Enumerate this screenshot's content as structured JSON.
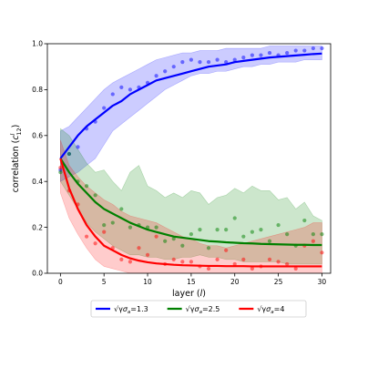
{
  "chart_data": {
    "type": "line",
    "xlabel": "layer (l)",
    "ylabel": "correlation (c12 l)",
    "xlim": [
      -1.5,
      31
    ],
    "ylim": [
      0,
      1
    ],
    "x_ticks": [
      0,
      5,
      10,
      15,
      20,
      25,
      30
    ],
    "y_ticks": [
      0.0,
      0.2,
      0.4,
      0.6,
      0.8,
      1.0
    ],
    "x_tick_labels": [
      "0",
      "5",
      "10",
      "15",
      "20",
      "25",
      "30"
    ],
    "y_tick_labels": [
      "0.0",
      "0.2",
      "0.4",
      "0.6",
      "0.8",
      "1.0"
    ],
    "grid": false,
    "legend_position": "below",
    "series": [
      {
        "name": "√γσa=1.3",
        "legend_label": "=1.3",
        "color": "#0000ff",
        "fit": [
          0.5,
          0.55,
          0.6,
          0.64,
          0.67,
          0.7,
          0.73,
          0.75,
          0.78,
          0.8,
          0.82,
          0.84,
          0.85,
          0.86,
          0.87,
          0.88,
          0.89,
          0.9,
          0.905,
          0.91,
          0.92,
          0.925,
          0.93,
          0.935,
          0.94,
          0.943,
          0.946,
          0.949,
          0.952,
          0.955,
          0.957
        ],
        "points": [
          0.45,
          0.52,
          0.55,
          0.63,
          0.66,
          0.72,
          0.78,
          0.81,
          0.8,
          0.81,
          0.83,
          0.86,
          0.88,
          0.9,
          0.92,
          0.93,
          0.92,
          0.92,
          0.93,
          0.92,
          0.93,
          0.94,
          0.95,
          0.95,
          0.96,
          0.95,
          0.96,
          0.97,
          0.97,
          0.98,
          0.98
        ],
        "band_upper": [
          0.62,
          0.64,
          0.68,
          0.72,
          0.76,
          0.8,
          0.83,
          0.85,
          0.87,
          0.89,
          0.91,
          0.93,
          0.94,
          0.95,
          0.96,
          0.96,
          0.97,
          0.97,
          0.97,
          0.98,
          0.98,
          0.98,
          0.98,
          0.98,
          0.99,
          0.99,
          0.99,
          0.99,
          0.99,
          0.99,
          0.99
        ],
        "band_lower": [
          0.4,
          0.42,
          0.44,
          0.47,
          0.5,
          0.56,
          0.62,
          0.65,
          0.68,
          0.71,
          0.74,
          0.77,
          0.8,
          0.82,
          0.84,
          0.86,
          0.87,
          0.87,
          0.88,
          0.88,
          0.89,
          0.9,
          0.9,
          0.91,
          0.91,
          0.92,
          0.92,
          0.92,
          0.93,
          0.93,
          0.93
        ]
      },
      {
        "name": "√γσa=2.5",
        "legend_label": "=2.5",
        "color": "#008000",
        "fit": [
          0.5,
          0.44,
          0.39,
          0.35,
          0.31,
          0.28,
          0.26,
          0.24,
          0.22,
          0.205,
          0.19,
          0.18,
          0.17,
          0.16,
          0.155,
          0.15,
          0.145,
          0.14,
          0.138,
          0.135,
          0.133,
          0.131,
          0.13,
          0.128,
          0.127,
          0.126,
          0.125,
          0.124,
          0.124,
          0.123,
          0.123
        ],
        "points": [
          0.44,
          0.52,
          0.4,
          0.38,
          0.34,
          0.21,
          0.22,
          0.28,
          0.2,
          0.21,
          0.2,
          0.2,
          0.14,
          0.15,
          0.12,
          0.17,
          0.19,
          0.11,
          0.19,
          0.19,
          0.24,
          0.16,
          0.18,
          0.19,
          0.14,
          0.21,
          0.17,
          0.12,
          0.23,
          0.17,
          0.17
        ],
        "band_upper": [
          0.63,
          0.6,
          0.54,
          0.48,
          0.44,
          0.45,
          0.4,
          0.36,
          0.44,
          0.47,
          0.38,
          0.36,
          0.33,
          0.35,
          0.33,
          0.36,
          0.35,
          0.3,
          0.33,
          0.34,
          0.37,
          0.35,
          0.38,
          0.36,
          0.36,
          0.32,
          0.33,
          0.28,
          0.31,
          0.25,
          0.23
        ],
        "band_lower": [
          0.4,
          0.34,
          0.28,
          0.22,
          0.18,
          0.15,
          0.12,
          0.1,
          0.08,
          0.08,
          0.07,
          0.07,
          0.06,
          0.06,
          0.07,
          0.07,
          0.08,
          0.07,
          0.07,
          0.06,
          0.06,
          0.05,
          0.05,
          0.05,
          0.05,
          0.05,
          0.04,
          0.04,
          0.04,
          0.04,
          0.04
        ]
      },
      {
        "name": "√γσa=4",
        "legend_label": "=4",
        "color": "#ff0000",
        "fit": [
          0.5,
          0.37,
          0.28,
          0.21,
          0.16,
          0.12,
          0.1,
          0.08,
          0.065,
          0.055,
          0.048,
          0.043,
          0.04,
          0.037,
          0.035,
          0.034,
          0.033,
          0.032,
          0.032,
          0.031,
          0.031,
          0.031,
          0.03,
          0.03,
          0.03,
          0.03,
          0.03,
          0.03,
          0.03,
          0.03,
          0.03
        ],
        "points": [
          0.46,
          0.36,
          0.3,
          0.16,
          0.13,
          0.18,
          0.11,
          0.06,
          0.05,
          0.11,
          0.08,
          0.16,
          0.04,
          0.06,
          0.05,
          0.05,
          0.03,
          0.02,
          0.06,
          0.1,
          0.04,
          0.06,
          0.02,
          0.03,
          0.06,
          0.05,
          0.04,
          0.02,
          0.12,
          0.14,
          0.09
        ],
        "band_upper": [
          0.58,
          0.47,
          0.42,
          0.38,
          0.35,
          0.32,
          0.3,
          0.27,
          0.25,
          0.24,
          0.23,
          0.22,
          0.2,
          0.18,
          0.16,
          0.15,
          0.13,
          0.12,
          0.12,
          0.11,
          0.12,
          0.13,
          0.14,
          0.15,
          0.16,
          0.17,
          0.18,
          0.19,
          0.2,
          0.22,
          0.22
        ],
        "band_lower": [
          0.35,
          0.24,
          0.17,
          0.11,
          0.06,
          0.03,
          0.02,
          0.01,
          0.0,
          0.0,
          0.0,
          0.0,
          0.0,
          0.0,
          0.0,
          0.0,
          0.0,
          0.0,
          0.0,
          0.0,
          0.0,
          0.0,
          0.0,
          0.0,
          0.0,
          0.0,
          0.0,
          0.0,
          0.0,
          0.0,
          0.0
        ]
      }
    ]
  }
}
